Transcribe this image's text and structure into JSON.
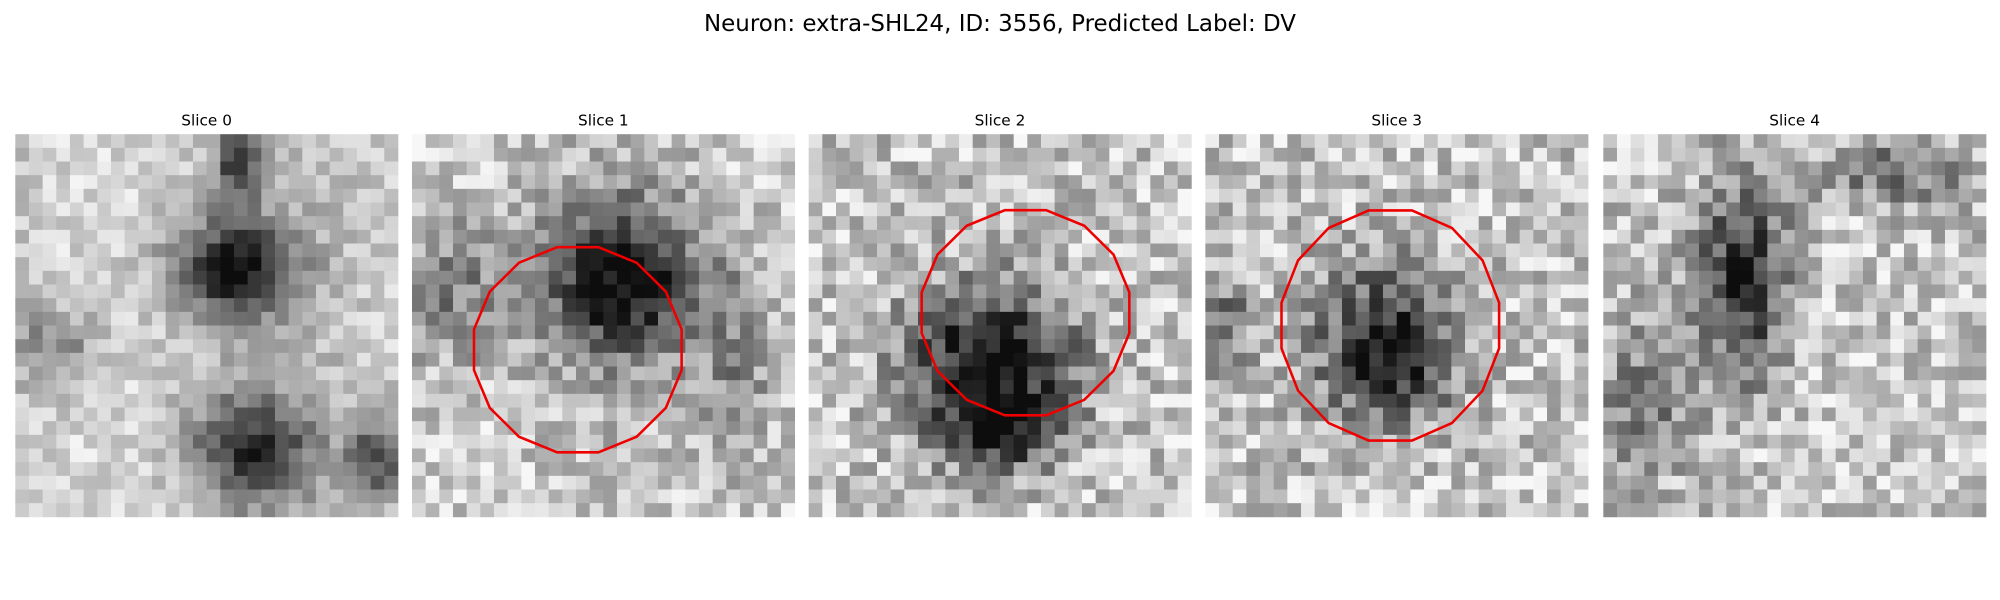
{
  "title": "Neuron: extra-SHL24, ID: 3556, Predicted Label: DV",
  "panels": [
    {
      "title": "Slice 0"
    },
    {
      "title": "Slice 1"
    },
    {
      "title": "Slice 2"
    },
    {
      "title": "Slice 3"
    },
    {
      "title": "Slice 4"
    }
  ]
}
